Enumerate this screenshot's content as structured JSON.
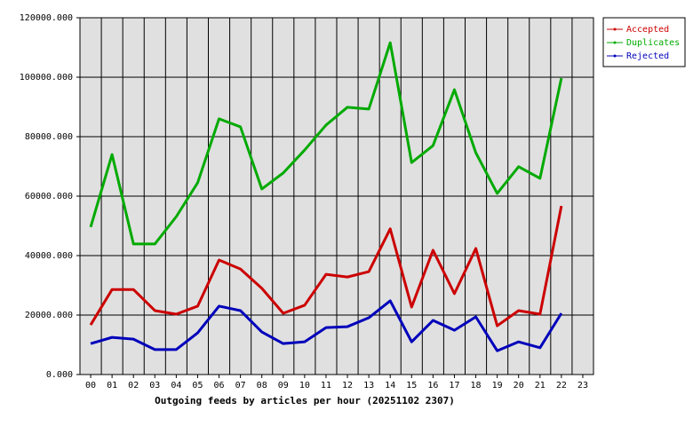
{
  "chart_data": {
    "type": "line",
    "x_label": "Outgoing feeds by articles per hour (20251102 2307)",
    "categories": [
      "00",
      "01",
      "02",
      "03",
      "04",
      "05",
      "06",
      "07",
      "08",
      "09",
      "10",
      "11",
      "12",
      "13",
      "14",
      "15",
      "16",
      "17",
      "18",
      "19",
      "20",
      "21",
      "22",
      "23"
    ],
    "series": [
      {
        "name": "Accepted",
        "color": "#cc0000",
        "values": [
          16700,
          28600,
          28600,
          21500,
          20300,
          23000,
          38500,
          35500,
          29000,
          20600,
          23300,
          33700,
          32800,
          34600,
          49000,
          22700,
          41800,
          27200,
          42400,
          16400,
          21500,
          20300,
          56700,
          null
        ]
      },
      {
        "name": "Duplicates",
        "color": "#00aa00",
        "values": [
          49600,
          74000,
          43900,
          43900,
          53100,
          64500,
          86000,
          83300,
          62400,
          67800,
          75500,
          83900,
          89900,
          89300,
          111600,
          71300,
          77000,
          95800,
          74600,
          60900,
          69900,
          66000,
          99700,
          null
        ]
      },
      {
        "name": "Rejected",
        "color": "#0000bb",
        "values": [
          10400,
          12500,
          11900,
          8400,
          8400,
          14000,
          23000,
          21500,
          14300,
          10400,
          11000,
          15800,
          16100,
          19100,
          24800,
          11000,
          18200,
          14900,
          19400,
          8000,
          11000,
          9000,
          20600,
          null
        ]
      }
    ],
    "ylim": [
      0,
      120000
    ],
    "yticks": [
      {
        "value": 0,
        "label": "0.000"
      },
      {
        "value": 20000,
        "label": "20000.000"
      },
      {
        "value": 40000,
        "label": "40000.000"
      },
      {
        "value": 60000,
        "label": "60000.000"
      },
      {
        "value": 80000,
        "label": "80000.000"
      },
      {
        "value": 100000,
        "label": "100000.000"
      },
      {
        "value": 120000,
        "label": "120000.000"
      }
    ],
    "grid": true,
    "legend": "right",
    "background": "#e0e0e0"
  }
}
